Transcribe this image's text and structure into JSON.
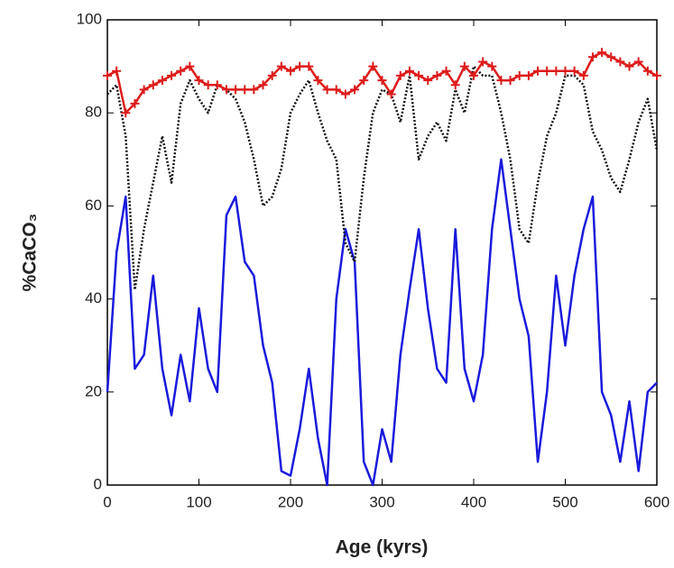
{
  "chart_data": {
    "type": "line",
    "xlabel": "Age (kyrs)",
    "ylabel": "%CaCO₃",
    "x": [
      0,
      10,
      20,
      30,
      40,
      50,
      60,
      70,
      80,
      90,
      100,
      110,
      120,
      130,
      140,
      150,
      160,
      170,
      180,
      190,
      200,
      210,
      220,
      230,
      240,
      250,
      260,
      270,
      280,
      290,
      300,
      310,
      320,
      330,
      340,
      350,
      360,
      370,
      380,
      390,
      400,
      410,
      420,
      430,
      440,
      450,
      460,
      470,
      480,
      490,
      500,
      510,
      520,
      530,
      540,
      550,
      560,
      570,
      580,
      590,
      600
    ],
    "series": [
      {
        "color": "#1a1adc",
        "style": "solid",
        "marker": "none",
        "values": [
          20,
          50,
          62,
          25,
          28,
          45,
          25,
          15,
          28,
          18,
          38,
          25,
          20,
          58,
          62,
          48,
          45,
          30,
          22,
          3,
          2,
          12,
          25,
          10,
          0,
          40,
          55,
          48,
          5,
          0,
          12,
          5,
          28,
          42,
          55,
          38,
          25,
          22,
          55,
          25,
          18,
          28,
          55,
          70,
          55,
          40,
          32,
          5,
          20,
          45,
          30,
          45,
          55,
          62,
          20,
          15,
          5,
          18,
          3,
          20,
          22
        ]
      },
      {
        "color": "#111111",
        "style": "dotted",
        "marker": "none",
        "values": [
          84,
          86,
          75,
          42,
          55,
          65,
          75,
          65,
          82,
          87,
          83,
          80,
          86,
          85,
          83,
          78,
          70,
          60,
          62,
          68,
          80,
          84,
          87,
          80,
          74,
          70,
          52,
          48,
          66,
          80,
          85,
          84,
          78,
          88,
          70,
          75,
          78,
          74,
          85,
          80,
          90,
          88,
          88,
          80,
          70,
          55,
          52,
          65,
          75,
          80,
          88,
          88,
          86,
          76,
          72,
          66,
          63,
          70,
          78,
          83,
          72
        ]
      },
      {
        "color": "#dd1c1c",
        "style": "solid",
        "marker": "+",
        "values": [
          88,
          89,
          80,
          82,
          85,
          86,
          87,
          88,
          89,
          90,
          87,
          86,
          86,
          85,
          85,
          85,
          85,
          86,
          88,
          90,
          89,
          90,
          90,
          87,
          85,
          85,
          84,
          85,
          87,
          90,
          87,
          84,
          88,
          89,
          88,
          87,
          88,
          89,
          86,
          90,
          88,
          91,
          90,
          87,
          87,
          88,
          88,
          89,
          89,
          89,
          89,
          89,
          88,
          92,
          93,
          92,
          91,
          90,
          91,
          89,
          88
        ]
      }
    ],
    "xlim": [
      0,
      600
    ],
    "xticks": [
      0,
      100,
      200,
      300,
      400,
      500,
      600
    ],
    "ylim": [
      0,
      100
    ],
    "yticks": [
      0,
      20,
      40,
      60,
      80,
      100
    ]
  }
}
